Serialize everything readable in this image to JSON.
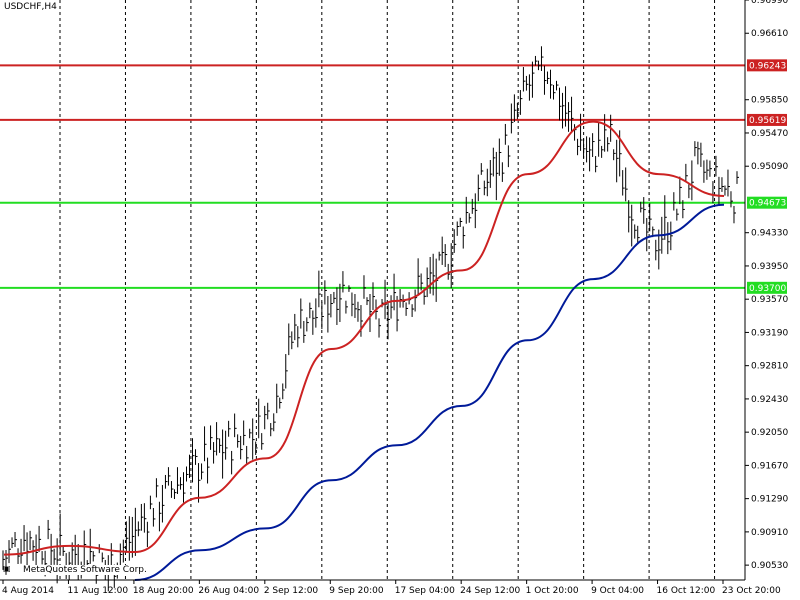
{
  "window": {
    "title": "USDCHF,H4"
  },
  "copyright": "MetaQuotes Software Corp.",
  "colors": {
    "background": "#ffffff",
    "candles": "#000000",
    "ma_fast": "#cc2222",
    "ma_slow": "#001a99",
    "resistance": "#cc2222",
    "support": "#22dd22",
    "grid": "#000000"
  },
  "chart_data": {
    "type": "line",
    "symbol": "USDCHF",
    "timeframe": "H4",
    "y_axis_ticks": [
      "0.96990",
      "0.96610",
      "0.95850",
      "0.95470",
      "0.95090",
      "0.94330",
      "0.93950",
      "0.93570",
      "0.93190",
      "0.92810",
      "0.92430",
      "0.92050",
      "0.91670",
      "0.91290",
      "0.90910",
      "0.90530"
    ],
    "ylim": [
      0.9036,
      0.9699
    ],
    "x_axis_ticks": [
      "4 Aug 2014",
      "11 Aug 12:00",
      "18 Aug 20:00",
      "26 Aug 04:00",
      "2 Sep 12:00",
      "9 Sep 20:00",
      "17 Sep 04:00",
      "24 Sep 12:00",
      "1 Oct 20:00",
      "9 Oct 04:00",
      "16 Oct 12:00",
      "23 Oct 20:00"
    ],
    "horizontal_levels": [
      {
        "value": 0.96243,
        "label": "0.96243",
        "kind": "resistance"
      },
      {
        "value": 0.95619,
        "label": "0.95619",
        "kind": "resistance"
      },
      {
        "value": 0.94673,
        "label": "0.94673",
        "kind": "support"
      },
      {
        "value": 0.937,
        "label": "0.93700",
        "kind": "support"
      }
    ],
    "close_series": [
      [
        "4 Aug 2014",
        0.906
      ],
      [
        "6 Aug",
        0.9085
      ],
      [
        "8 Aug",
        0.9075
      ],
      [
        "11 Aug 12:00",
        0.9065
      ],
      [
        "13 Aug",
        0.907
      ],
      [
        "15 Aug",
        0.905
      ],
      [
        "18 Aug 20:00",
        0.908
      ],
      [
        "20 Aug",
        0.9115
      ],
      [
        "22 Aug",
        0.914
      ],
      [
        "24 Aug",
        0.916
      ],
      [
        "26 Aug 04:00",
        0.918
      ],
      [
        "28 Aug",
        0.9195
      ],
      [
        "30 Aug",
        0.92
      ],
      [
        "2 Sep 12:00",
        0.924
      ],
      [
        "4 Sep",
        0.933
      ],
      [
        "6 Sep",
        0.934
      ],
      [
        "9 Sep 20:00",
        0.937
      ],
      [
        "11 Sep",
        0.9355
      ],
      [
        "13 Sep",
        0.933
      ],
      [
        "17 Sep 04:00",
        0.936
      ],
      [
        "19 Sep",
        0.937
      ],
      [
        "21 Sep",
        0.939
      ],
      [
        "24 Sep 12:00",
        0.945
      ],
      [
        "26 Sep",
        0.949
      ],
      [
        "28 Sep",
        0.953
      ],
      [
        "1 Oct 20:00",
        0.96
      ],
      [
        "3 Oct",
        0.962
      ],
      [
        "5 Oct",
        0.956
      ],
      [
        "9 Oct 04:00",
        0.952
      ],
      [
        "11 Oct",
        0.954
      ],
      [
        "13 Oct",
        0.946
      ],
      [
        "16 Oct 12:00",
        0.942
      ],
      [
        "18 Oct",
        0.945
      ],
      [
        "20 Oct",
        0.951
      ],
      [
        "23 Oct 20:00",
        0.949
      ],
      [
        "25 Oct",
        0.9475
      ]
    ],
    "ma_fast_series": [
      [
        "4 Aug 2014",
        0.9065
      ],
      [
        "11 Aug 12:00",
        0.9075
      ],
      [
        "18 Aug 20:00",
        0.9068
      ],
      [
        "26 Aug 04:00",
        0.913
      ],
      [
        "2 Sep 12:00",
        0.9175
      ],
      [
        "9 Sep 20:00",
        0.93
      ],
      [
        "17 Sep 04:00",
        0.9355
      ],
      [
        "24 Sep 12:00",
        0.939
      ],
      [
        "1 Oct 20:00",
        0.95
      ],
      [
        "9 Oct 04:00",
        0.956
      ],
      [
        "16 Oct 12:00",
        0.95
      ],
      [
        "23 Oct 20:00",
        0.9475
      ]
    ],
    "ma_slow_series": [
      [
        "18 Aug 20:00",
        0.9036
      ],
      [
        "26 Aug 04:00",
        0.907
      ],
      [
        "2 Sep 12:00",
        0.9095
      ],
      [
        "9 Sep 20:00",
        0.915
      ],
      [
        "17 Sep 04:00",
        0.919
      ],
      [
        "24 Sep 12:00",
        0.9235
      ],
      [
        "1 Oct 20:00",
        0.931
      ],
      [
        "9 Oct 04:00",
        0.938
      ],
      [
        "16 Oct 12:00",
        0.943
      ],
      [
        "23 Oct 20:00",
        0.9465
      ]
    ],
    "grid": "vertical-dashed"
  }
}
